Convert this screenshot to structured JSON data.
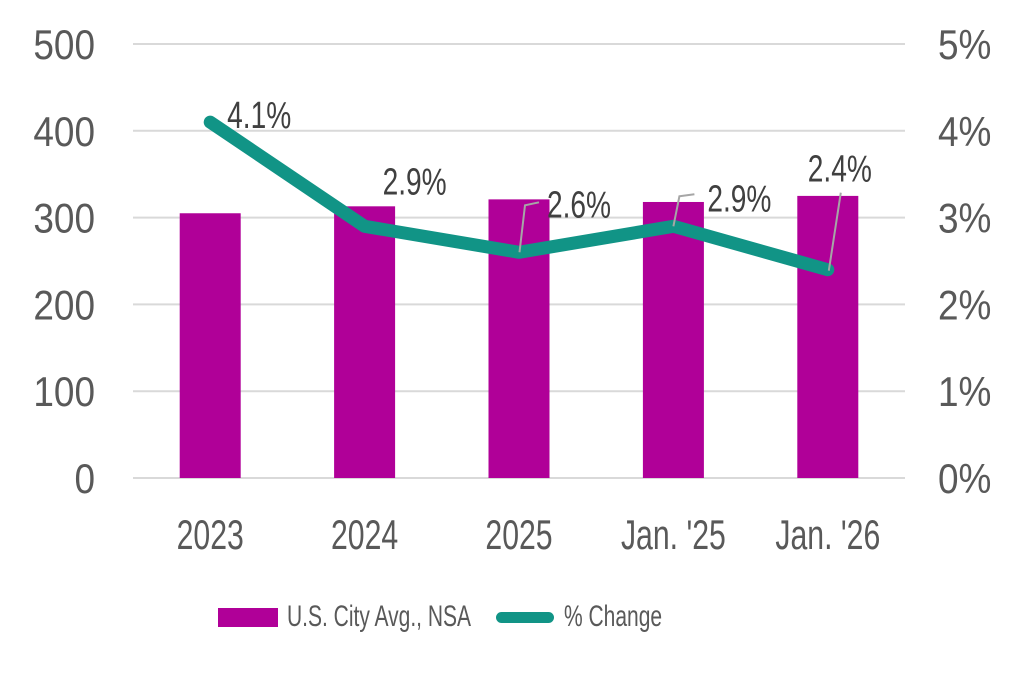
{
  "chart_data": {
    "type": "combo_bar_line",
    "categories": [
      "2023",
      "2024",
      "2025",
      "Jan. '25",
      "Jan. '26"
    ],
    "series": [
      {
        "name": "U.S. City Avg., NSA",
        "chart": "bar",
        "axis": "left",
        "color": "#B00098",
        "values": [
          305,
          313,
          321,
          318,
          325
        ]
      },
      {
        "name": "% Change",
        "chart": "line",
        "axis": "right",
        "color": "#119486",
        "values": [
          4.1,
          2.9,
          2.6,
          2.9,
          2.4
        ],
        "data_labels": [
          "4.1%",
          "2.9%",
          "2.6%",
          "2.9%",
          "2.4%"
        ]
      }
    ],
    "left_axis": {
      "min": 0,
      "max": 500,
      "tick_labels": [
        "0",
        "100",
        "200",
        "300",
        "400",
        "500"
      ]
    },
    "right_axis": {
      "min": 0,
      "max": 5,
      "tick_labels": [
        "0%",
        "1%",
        "2%",
        "3%",
        "4%",
        "5%"
      ]
    },
    "grid": true,
    "legend_position": "bottom"
  },
  "legend": {
    "items": [
      {
        "label": "U.S. City Avg., NSA",
        "marker": "rect",
        "color": "#B00098"
      },
      {
        "label": "% Change",
        "marker": "line",
        "color": "#119486"
      }
    ]
  },
  "colors": {
    "bar": "#B00098",
    "line": "#119486",
    "grid": "#D9D9D9",
    "axis_text": "#595959",
    "data_label_text": "#404040",
    "leader_line": "#A6A6A6",
    "background": "#FFFFFF"
  }
}
